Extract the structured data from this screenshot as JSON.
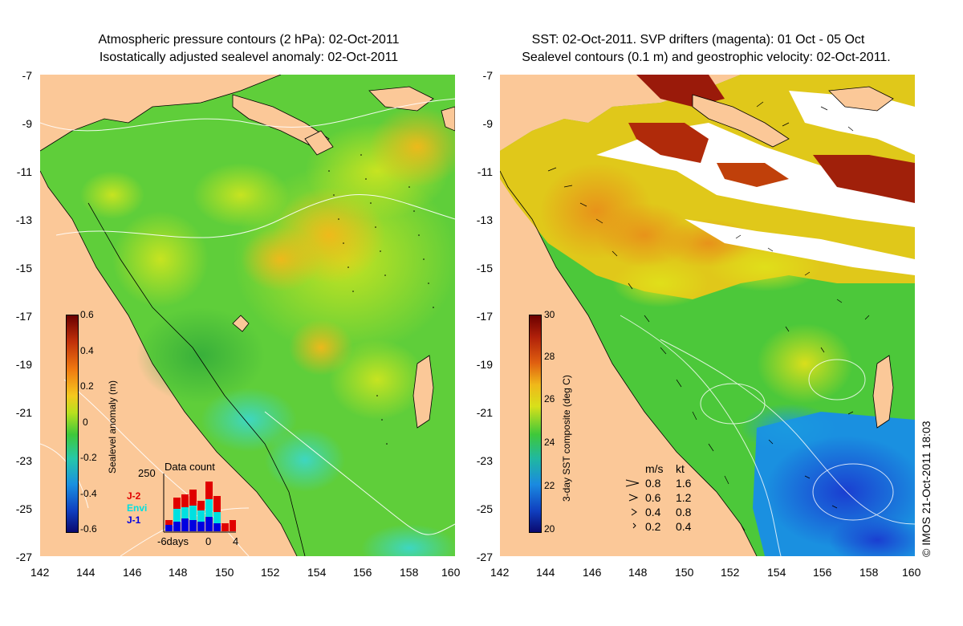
{
  "left_panel": {
    "title_line1": "Atmospheric pressure contours (2 hPa): 02-Oct-2011",
    "title_line2": "Isostatically adjusted sealevel anomaly: 02-Oct-2011",
    "colorbar": {
      "label": "Sealevel anomaly (m)",
      "ticks": [
        "0.6",
        "0.4",
        "0.2",
        "0",
        "-0.2",
        "-0.4",
        "-0.6"
      ],
      "range": [
        -0.6,
        0.6
      ]
    },
    "data_count": {
      "title": "Data count",
      "ymax_label": "250",
      "x_labels": [
        "-6days",
        "0",
        "4"
      ],
      "series_labels": [
        {
          "name": "J-2",
          "color": "#e00000"
        },
        {
          "name": "Envi",
          "color": "#00e0e0"
        },
        {
          "name": "J-1",
          "color": "#0000e0"
        }
      ]
    }
  },
  "right_panel": {
    "title_line1": "SST: 02-Oct-2011. SVP drifters (magenta): 01 Oct - 05 Oct",
    "title_line2": "Sealevel contours (0.1 m) and geostrophic velocity: 02-Oct-2011.",
    "colorbar": {
      "label": "3-day SST composite (deg C)",
      "ticks": [
        "30",
        "28",
        "26",
        "24",
        "22",
        "20"
      ],
      "range": [
        20,
        30
      ]
    },
    "velocity_legend": {
      "header_ms": "m/s",
      "header_kt": "kt",
      "rows": [
        {
          "ms": "0.8",
          "kt": "1.6"
        },
        {
          "ms": "0.6",
          "kt": "1.2"
        },
        {
          "ms": "0.4",
          "kt": "0.8"
        },
        {
          "ms": "0.2",
          "kt": "0.4"
        }
      ]
    }
  },
  "axes": {
    "lat_labels": [
      "-7",
      "-9",
      "-11",
      "-13",
      "-15",
      "-17",
      "-19",
      "-21",
      "-23",
      "-25",
      "-27"
    ],
    "lon_labels": [
      "142",
      "144",
      "146",
      "148",
      "150",
      "152",
      "154",
      "156",
      "158",
      "160"
    ]
  },
  "copyright": "© IMOS 21-Oct-2011 18:03",
  "colors": {
    "land": "#fbc898",
    "ocean_green": "#5fce3a",
    "ocean_yellow": "#d7e41a"
  }
}
